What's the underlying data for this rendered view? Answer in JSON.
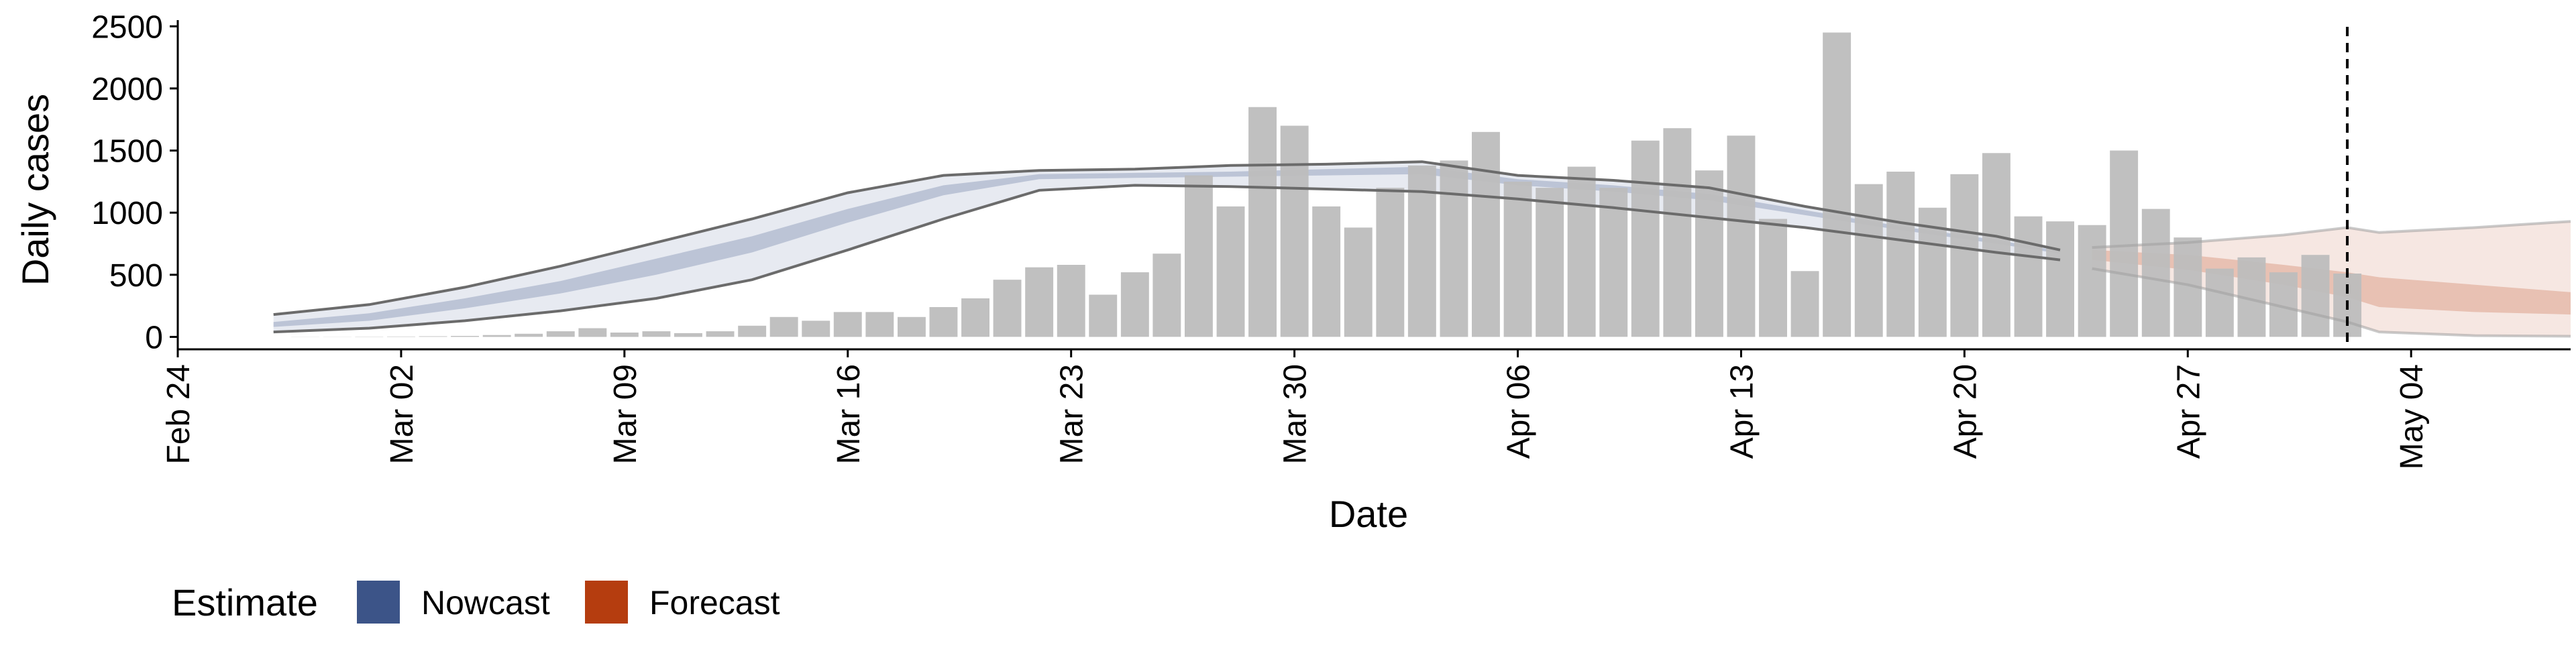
{
  "chart_data": {
    "type": "bar",
    "xlabel": "Date",
    "ylabel": "Daily cases",
    "ylim": [
      -100,
      2550
    ],
    "y_ticks": [
      0,
      500,
      1000,
      1500,
      2000,
      2500
    ],
    "x_domain": [
      "2020-02-24",
      "2020-05-09"
    ],
    "x_ticks": [
      {
        "date": "2020-02-24",
        "label": "Feb 24"
      },
      {
        "date": "2020-03-02",
        "label": "Mar 02"
      },
      {
        "date": "2020-03-09",
        "label": "Mar 09"
      },
      {
        "date": "2020-03-16",
        "label": "Mar 16"
      },
      {
        "date": "2020-03-23",
        "label": "Mar 23"
      },
      {
        "date": "2020-03-30",
        "label": "Mar 30"
      },
      {
        "date": "2020-04-06",
        "label": "Apr 06"
      },
      {
        "date": "2020-04-13",
        "label": "Apr 13"
      },
      {
        "date": "2020-04-20",
        "label": "Apr 20"
      },
      {
        "date": "2020-04-27",
        "label": "Apr 27"
      },
      {
        "date": "2020-05-04",
        "label": "May 04"
      }
    ],
    "grid": false,
    "legend_position": "bottom-left",
    "reference_line_date": "2020-05-02",
    "bars": {
      "color": "#bdbdbd",
      "dates": [
        "2020-02-28",
        "2020-02-29",
        "2020-03-01",
        "2020-03-02",
        "2020-03-03",
        "2020-03-04",
        "2020-03-05",
        "2020-03-06",
        "2020-03-07",
        "2020-03-08",
        "2020-03-09",
        "2020-03-10",
        "2020-03-11",
        "2020-03-12",
        "2020-03-13",
        "2020-03-14",
        "2020-03-15",
        "2020-03-16",
        "2020-03-17",
        "2020-03-18",
        "2020-03-19",
        "2020-03-20",
        "2020-03-21",
        "2020-03-22",
        "2020-03-23",
        "2020-03-24",
        "2020-03-25",
        "2020-03-26",
        "2020-03-27",
        "2020-03-28",
        "2020-03-29",
        "2020-03-30",
        "2020-03-31",
        "2020-04-01",
        "2020-04-02",
        "2020-04-03",
        "2020-04-04",
        "2020-04-05",
        "2020-04-06",
        "2020-04-07",
        "2020-04-08",
        "2020-04-09",
        "2020-04-10",
        "2020-04-11",
        "2020-04-12",
        "2020-04-13",
        "2020-04-14",
        "2020-04-15",
        "2020-04-16",
        "2020-04-17",
        "2020-04-18",
        "2020-04-19",
        "2020-04-20",
        "2020-04-21",
        "2020-04-22",
        "2020-04-23",
        "2020-04-24",
        "2020-04-25",
        "2020-04-26",
        "2020-04-27",
        "2020-04-28",
        "2020-04-29",
        "2020-04-30",
        "2020-05-01",
        "2020-05-02"
      ],
      "values": [
        1,
        1,
        2,
        3,
        5,
        8,
        15,
        25,
        45,
        70,
        35,
        45,
        30,
        45,
        90,
        160,
        130,
        200,
        200,
        160,
        240,
        310,
        460,
        560,
        580,
        340,
        520,
        670,
        1300,
        1050,
        1850,
        1700,
        1050,
        880,
        1200,
        1380,
        1420,
        1650,
        1250,
        1200,
        1370,
        1200,
        1580,
        1680,
        1340,
        1620,
        950,
        530,
        2450,
        1230,
        1330,
        1040,
        1310,
        1480,
        970,
        930,
        900,
        1500,
        1030,
        800,
        550,
        640,
        520,
        660,
        510
      ]
    },
    "nowcast": {
      "name": "Nowcast",
      "color": "#3c5488",
      "dates": [
        "2020-02-27",
        "2020-03-01",
        "2020-03-04",
        "2020-03-07",
        "2020-03-10",
        "2020-03-13",
        "2020-03-16",
        "2020-03-19",
        "2020-03-22",
        "2020-03-25",
        "2020-03-28",
        "2020-03-31",
        "2020-04-03",
        "2020-04-06",
        "2020-04-09",
        "2020-04-12",
        "2020-04-15",
        "2020-04-18",
        "2020-04-21",
        "2020-04-23"
      ],
      "outer_low": [
        40,
        70,
        130,
        210,
        310,
        460,
        700,
        950,
        1180,
        1220,
        1210,
        1190,
        1170,
        1110,
        1040,
        960,
        880,
        780,
        680,
        620
      ],
      "outer_high": [
        180,
        260,
        400,
        570,
        760,
        950,
        1160,
        1300,
        1340,
        1350,
        1380,
        1390,
        1410,
        1300,
        1260,
        1200,
        1050,
        920,
        810,
        700
      ],
      "inner_low": [
        80,
        130,
        230,
        350,
        500,
        680,
        920,
        1140,
        1270,
        1280,
        1290,
        1300,
        1310,
        1220,
        1170,
        1100,
        980,
        860,
        750,
        670
      ],
      "inner_high": [
        120,
        190,
        310,
        450,
        630,
        810,
        1030,
        1220,
        1310,
        1320,
        1330,
        1350,
        1370,
        1270,
        1220,
        1150,
        1020,
        890,
        780,
        690
      ]
    },
    "forecast": {
      "name": "Forecast",
      "color": "#b53d0f",
      "dates": [
        "2020-04-24",
        "2020-04-27",
        "2020-04-30",
        "2020-05-02",
        "2020-05-03",
        "2020-05-06",
        "2020-05-09"
      ],
      "outer_low": [
        550,
        420,
        240,
        120,
        40,
        10,
        5
      ],
      "outer_high": [
        720,
        760,
        820,
        880,
        840,
        880,
        930
      ],
      "inner_low": [
        620,
        540,
        420,
        320,
        240,
        200,
        180
      ],
      "inner_high": [
        700,
        660,
        580,
        520,
        480,
        420,
        360
      ]
    }
  },
  "legend": {
    "title": "Estimate",
    "items": [
      {
        "label": "Nowcast",
        "color": "#3c5488"
      },
      {
        "label": "Forecast",
        "color": "#b53d0f"
      }
    ]
  }
}
